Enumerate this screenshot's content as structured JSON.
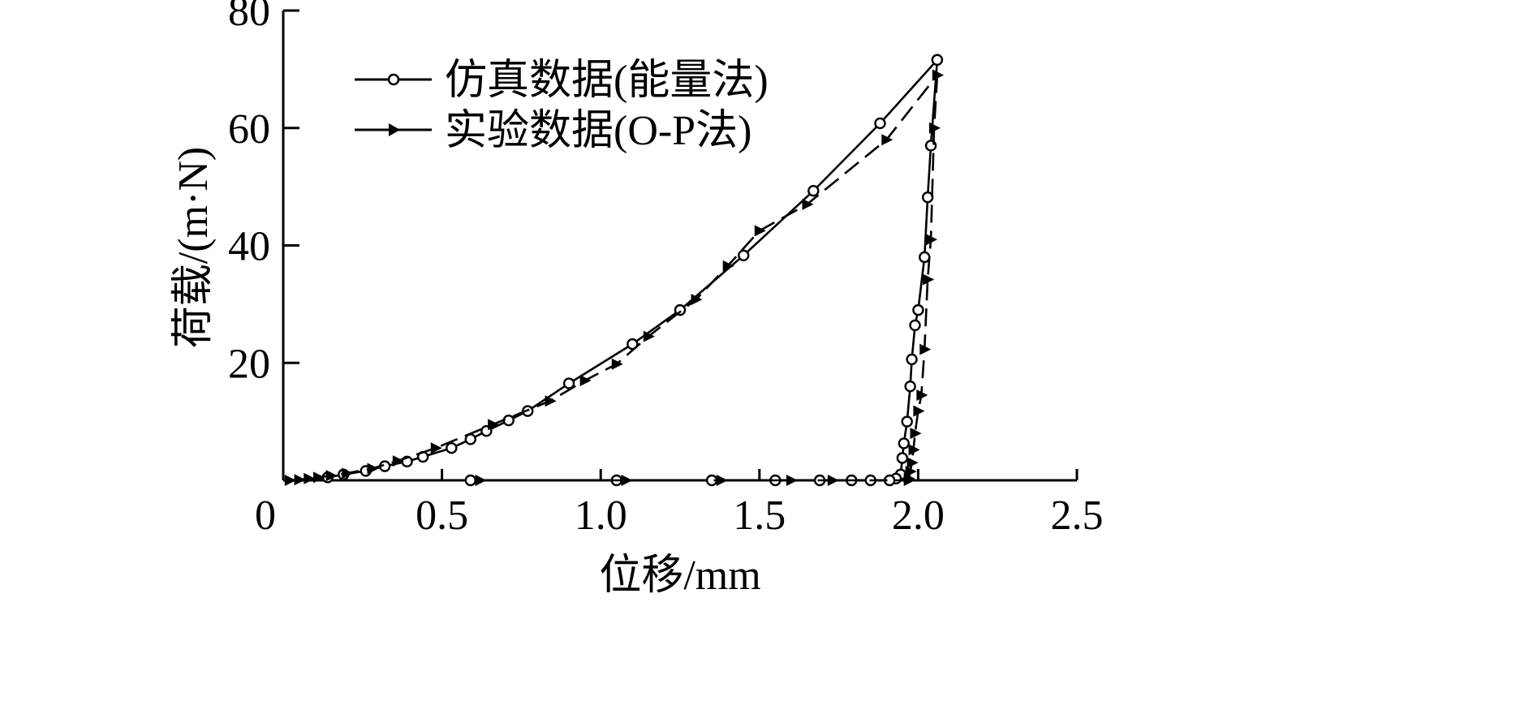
{
  "chart_data": {
    "type": "line",
    "title": "",
    "xlabel": "位移/mm",
    "ylabel": "荷载/(m·N)",
    "xlim": [
      0,
      2.5
    ],
    "ylim": [
      0,
      80
    ],
    "x_ticks": [
      "0",
      "0.5",
      "1.0",
      "1.5",
      "2.0",
      "2.5"
    ],
    "y_ticks": [
      "20",
      "40",
      "60",
      "80"
    ],
    "grid": false,
    "legend_position": "top-left",
    "series": [
      {
        "name": "仿真数据(能量法)",
        "marker": "circle",
        "line_style": "solid",
        "loading": {
          "x": [
            0.14,
            0.19,
            0.26,
            0.32,
            0.39,
            0.44,
            0.53,
            0.59,
            0.64,
            0.71,
            0.77,
            0.9,
            1.1,
            1.25,
            1.45,
            1.67,
            1.88,
            2.06
          ],
          "y": [
            0.5,
            1.0,
            1.6,
            2.4,
            3.2,
            4.0,
            5.5,
            7.0,
            8.4,
            10.2,
            11.8,
            16.5,
            23.2,
            29.0,
            38.3,
            49.3,
            60.8,
            71.6
          ]
        },
        "unloading": {
          "x": [
            2.06,
            2.04,
            2.03,
            2.02,
            2.0,
            1.99,
            1.98,
            1.975,
            1.965,
            1.955,
            1.95,
            1.945,
            1.93
          ],
          "y": [
            71.6,
            57.0,
            48.2,
            38.0,
            29.0,
            26.4,
            20.6,
            16.0,
            10.0,
            6.3,
            3.8,
            1.0,
            0.3
          ]
        },
        "baseline": {
          "x": [
            0.59,
            1.05,
            1.35,
            1.55,
            1.69,
            1.79,
            1.85,
            1.91
          ],
          "y": [
            0,
            0,
            0,
            0,
            0,
            0,
            0,
            0
          ]
        }
      },
      {
        "name": "实验数据(O-P法)",
        "marker": "triangle-right",
        "line_style": "dashed",
        "loading": {
          "x": [
            0.02,
            0.05,
            0.08,
            0.11,
            0.15,
            0.2,
            0.28,
            0.36,
            0.48,
            0.66,
            0.84,
            0.95,
            1.05,
            1.15,
            1.3,
            1.4,
            1.5,
            1.65,
            1.9,
            2.06
          ],
          "y": [
            0,
            0.1,
            0.3,
            0.5,
            0.8,
            1.2,
            2.0,
            3.3,
            5.5,
            9.5,
            13.5,
            17.0,
            19.8,
            24.5,
            30.8,
            36.5,
            42.5,
            47.0,
            58.0,
            69.0
          ]
        },
        "unloading": {
          "x": [
            2.06,
            2.05,
            2.04,
            2.03,
            2.02,
            2.01,
            2.0,
            1.99,
            1.985,
            1.98,
            1.975,
            1.97
          ],
          "y": [
            69.0,
            60.0,
            41.0,
            34.2,
            22.3,
            14.5,
            11.8,
            8.0,
            5.2,
            3.0,
            1.5,
            0.3
          ]
        },
        "baseline": {
          "x": [
            0.62,
            1.08,
            1.38,
            1.6,
            1.73,
            1.97
          ],
          "y": [
            0,
            0,
            0,
            0,
            0,
            0
          ]
        }
      }
    ]
  }
}
